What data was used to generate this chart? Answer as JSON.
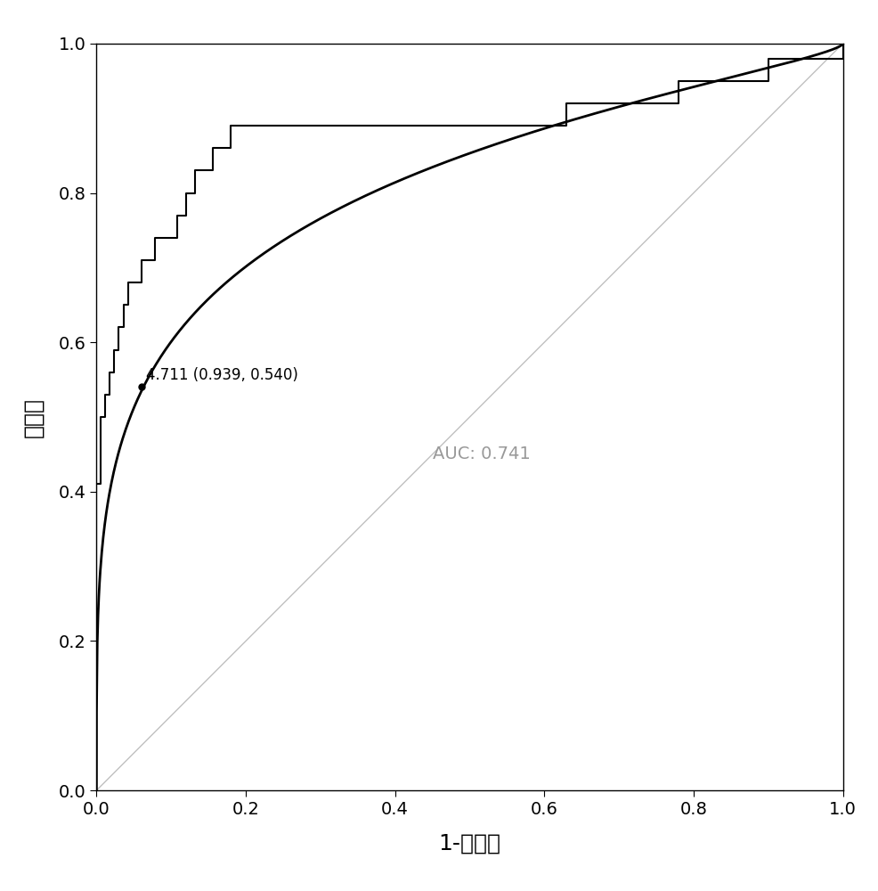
{
  "title": "",
  "xlabel": "1-特异性",
  "ylabel": "敏感性",
  "auc_text": "AUC: 0.741",
  "cutoff_text": "4.711 (0.939, 0.540)",
  "cutoff_point": [
    0.061,
    0.54
  ],
  "auc": 0.741,
  "diagonal_color": "#c0c0c0",
  "curve_color": "#000000",
  "step_color": "#000000",
  "background_color": "#ffffff",
  "auc_text_color": "#999999",
  "xlim": [
    0.0,
    1.0
  ],
  "ylim": [
    0.0,
    1.0
  ],
  "xticks": [
    0.0,
    0.2,
    0.4,
    0.6,
    0.8,
    1.0
  ],
  "yticks": [
    0.0,
    0.2,
    0.4,
    0.6,
    0.8,
    1.0
  ],
  "step_x": [
    0.0,
    0.0,
    0.0,
    0.0,
    0.0,
    0.0,
    0.006,
    0.006,
    0.006,
    0.006,
    0.012,
    0.012,
    0.018,
    0.018,
    0.024,
    0.024,
    0.03,
    0.03,
    0.036,
    0.036,
    0.042,
    0.042,
    0.048,
    0.054,
    0.06,
    0.06,
    0.066,
    0.072,
    0.078,
    0.078,
    0.084,
    0.09,
    0.096,
    0.102,
    0.108,
    0.108,
    0.12,
    0.12,
    0.132,
    0.132,
    0.144,
    0.156,
    0.156,
    0.168,
    0.18,
    0.18,
    0.192,
    0.204,
    0.216,
    0.228,
    0.246,
    0.264,
    0.282,
    0.3,
    0.33,
    0.36,
    0.39,
    0.42,
    0.45,
    0.48,
    0.51,
    0.54,
    0.57,
    0.6,
    0.63,
    0.63,
    0.66,
    0.69,
    0.72,
    0.75,
    0.78,
    0.81,
    0.84,
    0.87,
    0.9,
    0.93,
    0.96,
    0.99,
    1.0
  ],
  "step_y": [
    0.0,
    0.04,
    0.08,
    0.17,
    0.25,
    0.41,
    0.41,
    0.44,
    0.47,
    0.5,
    0.5,
    0.53,
    0.53,
    0.56,
    0.56,
    0.59,
    0.59,
    0.62,
    0.62,
    0.65,
    0.65,
    0.68,
    0.68,
    0.68,
    0.68,
    0.71,
    0.71,
    0.71,
    0.71,
    0.74,
    0.74,
    0.74,
    0.74,
    0.74,
    0.74,
    0.77,
    0.77,
    0.8,
    0.8,
    0.83,
    0.83,
    0.83,
    0.86,
    0.86,
    0.86,
    0.89,
    0.89,
    0.89,
    0.89,
    0.89,
    0.89,
    0.89,
    0.89,
    0.89,
    0.89,
    0.89,
    0.89,
    0.89,
    0.89,
    0.89,
    0.89,
    0.89,
    0.89,
    0.89,
    0.89,
    0.92,
    0.92,
    0.92,
    0.92,
    0.92,
    0.95,
    0.95,
    0.95,
    0.95,
    0.98,
    0.98,
    0.98,
    0.98,
    1.0
  ]
}
